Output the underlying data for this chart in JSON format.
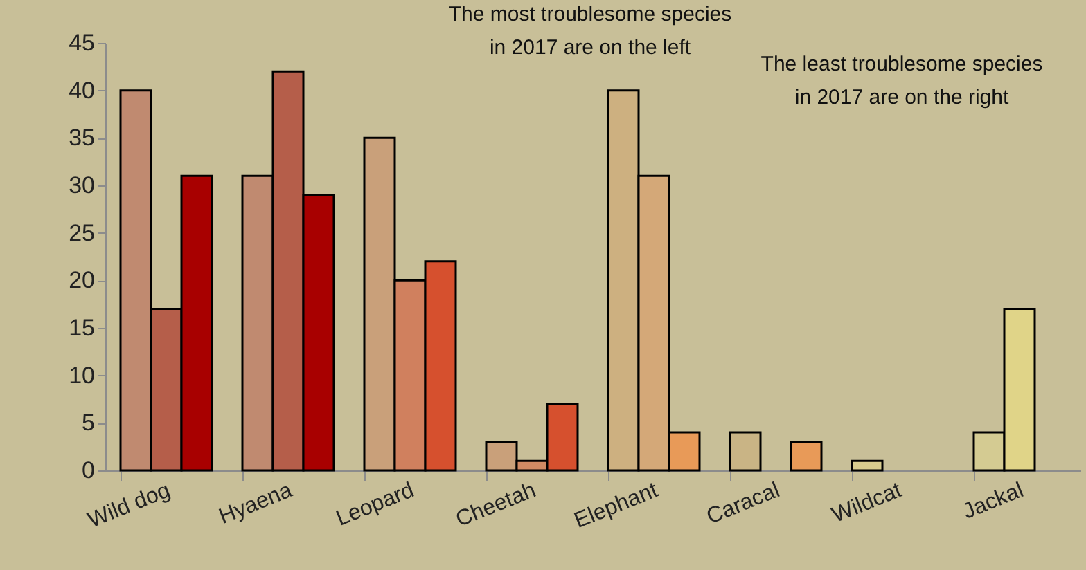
{
  "chart_data": {
    "type": "bar",
    "categories": [
      "Wild dog",
      "Hyaena",
      "Leopard",
      "Cheetah",
      "Elephant",
      "Caracal",
      "Wildcat",
      "Jackal"
    ],
    "series": [
      {
        "colors": [
          "#c08a70",
          "#c08a70",
          "#c9a07a",
          "#c9a07a",
          "#cdb080",
          "#c9b485",
          "#d8cc8e",
          "#d4cb92"
        ],
        "values": [
          40,
          31,
          35,
          3,
          40,
          4,
          1,
          4
        ]
      },
      {
        "colors": [
          "#b55e4a",
          "#b55e4a",
          "#d0805e",
          "#d08a64",
          "#d4a878",
          "#d8a070",
          "#ddd090",
          "#e0d488"
        ],
        "values": [
          17,
          42,
          20,
          1,
          31,
          null,
          null,
          17
        ]
      },
      {
        "colors": [
          "#a80000",
          "#a80000",
          "#d6502e",
          "#d6502e",
          "#e89a58",
          "#e89a58",
          "#e6d890",
          "#e6d890"
        ],
        "values": [
          31,
          29,
          22,
          7,
          4,
          3,
          null,
          null
        ]
      }
    ],
    "ylim": [
      0,
      45
    ],
    "yticks": [
      0,
      5,
      10,
      15,
      20,
      25,
      30,
      35,
      40,
      45
    ],
    "grid": false,
    "annotations": [
      "The most troublesome species\n in 2017 are on the left",
      "The least troublesome species\n in 2017 are on the right"
    ]
  }
}
